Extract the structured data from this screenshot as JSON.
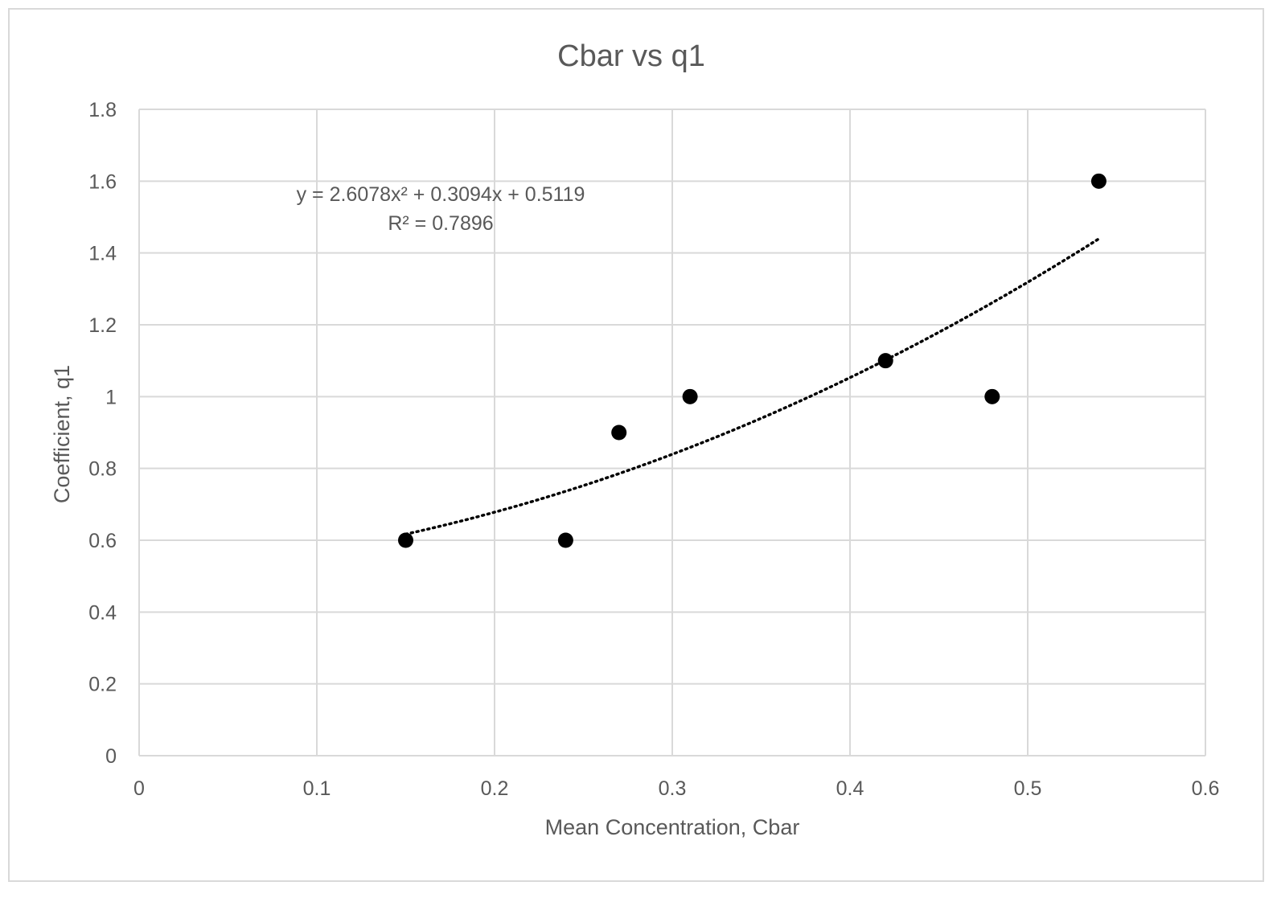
{
  "chart_data": {
    "type": "scatter",
    "title": "Cbar vs q1",
    "xlabel": "Mean Concentration, Cbar",
    "ylabel": "Coefficient, q1",
    "xlim": [
      0,
      0.6
    ],
    "ylim": [
      0,
      1.8
    ],
    "xticks": [
      "0",
      "0.1",
      "0.2",
      "0.3",
      "0.4",
      "0.5",
      "0.6"
    ],
    "yticks": [
      "0",
      "0.2",
      "0.4",
      "0.6",
      "0.8",
      "1",
      "1.2",
      "1.4",
      "1.6",
      "1.8"
    ],
    "grid": true,
    "legend": "none",
    "point_color": "#000000",
    "trendline_color": "#000000",
    "points": [
      {
        "x": 0.15,
        "y": 0.6
      },
      {
        "x": 0.24,
        "y": 0.6
      },
      {
        "x": 0.27,
        "y": 0.9
      },
      {
        "x": 0.31,
        "y": 1.0
      },
      {
        "x": 0.42,
        "y": 1.1
      },
      {
        "x": 0.48,
        "y": 1.0
      },
      {
        "x": 0.54,
        "y": 1.6
      }
    ],
    "trendline": {
      "type": "polynomial",
      "coefficients": [
        2.6078,
        0.3094,
        0.5119
      ],
      "x_range": [
        0.15,
        0.54
      ],
      "equation_label": "y = 2.6078x² + 0.3094x + 0.5119",
      "r2_label": "R² = 0.7896"
    }
  }
}
